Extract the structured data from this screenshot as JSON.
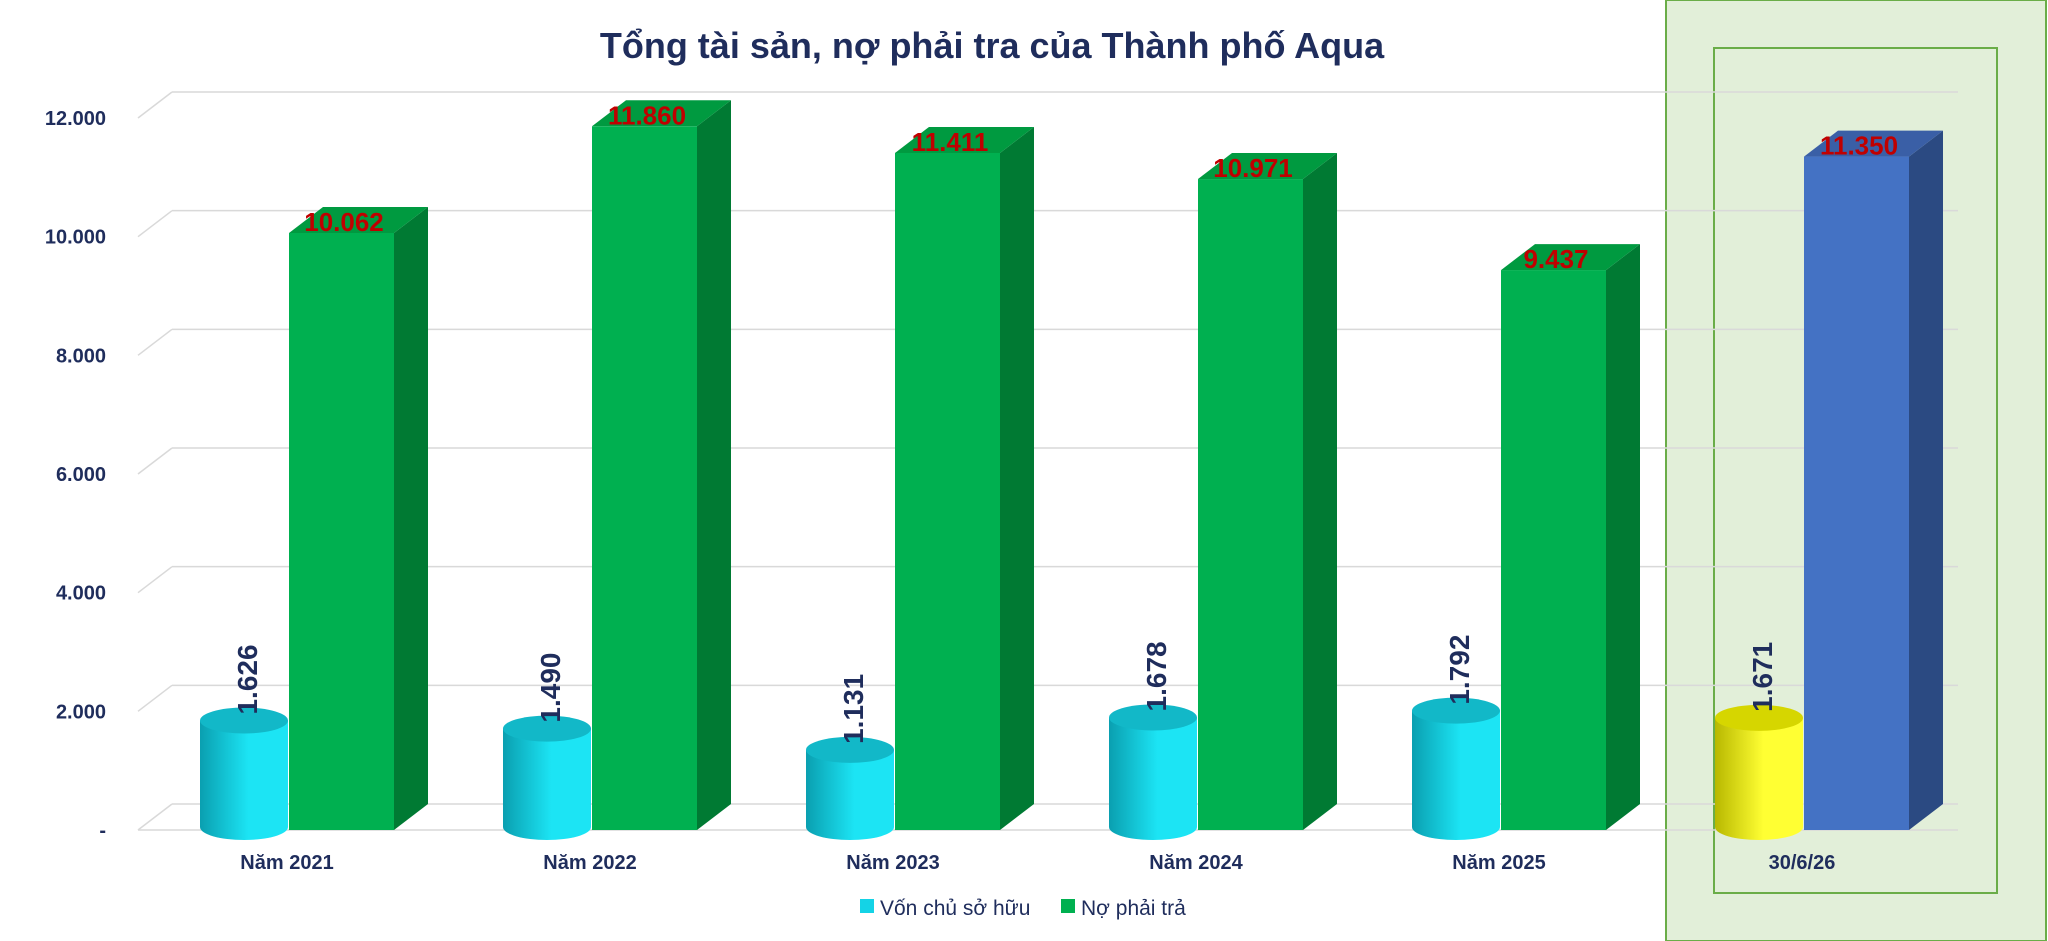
{
  "chart_data": {
    "type": "bar",
    "title": "Tổng tài sản, nợ phải tra của Thành phố Aqua",
    "categories": [
      "Năm 2021",
      "Năm 2022",
      "Năm 2023",
      "Năm 2024",
      "Năm 2025",
      "30/6/26"
    ],
    "series": [
      {
        "name": "Vốn chủ sở hữu",
        "values": [
          1626,
          1490,
          1131,
          1678,
          1792,
          1671
        ],
        "labels": [
          "1.626",
          "1.490",
          "1.131",
          "1.678",
          "1.792",
          "1.671"
        ],
        "color": "#14d3e6",
        "highlight_color": "#ffff00"
      },
      {
        "name": "Nợ phải trả",
        "values": [
          10062,
          11860,
          11411,
          10971,
          9437,
          11350
        ],
        "labels": [
          "10.062",
          "11.860",
          "11.411",
          "10.971",
          "9.437",
          "11.350"
        ],
        "color": "#00b050",
        "highlight_color": "#4472c4"
      }
    ],
    "y_ticks": [
      {
        "value": 0,
        "label": "-"
      },
      {
        "value": 2000,
        "label": "2.000"
      },
      {
        "value": 4000,
        "label": "4.000"
      },
      {
        "value": 6000,
        "label": "6.000"
      },
      {
        "value": 8000,
        "label": "8.000"
      },
      {
        "value": 10000,
        "label": "10.000"
      },
      {
        "value": 12000,
        "label": "12.000"
      }
    ],
    "ylim": [
      0,
      12000
    ],
    "grid": true,
    "legend_position": "bottom",
    "highlighted_category": "30/6/26",
    "highlight_panel_color": "#e2efd9"
  }
}
